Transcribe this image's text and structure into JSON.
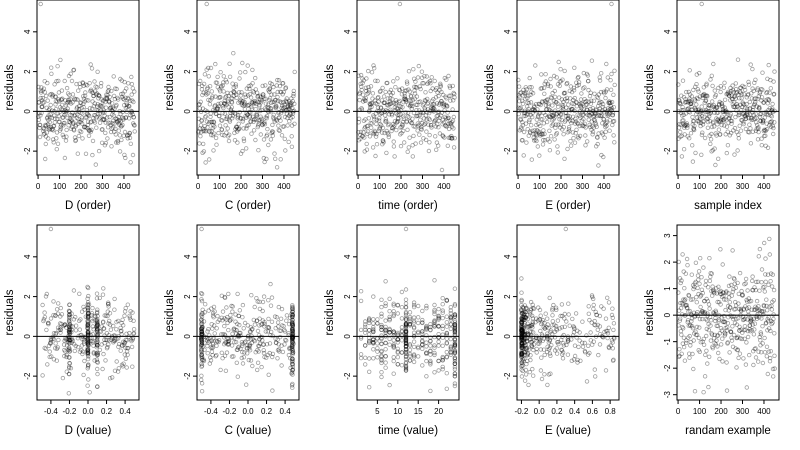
{
  "chart_data": [
    {
      "type": "scatter",
      "xlabel": "D (order)",
      "ylabel": "residuals",
      "xlim": [
        -5,
        470
      ],
      "ylim": [
        -3.2,
        5.6
      ],
      "xticks": [
        0,
        100,
        200,
        300,
        400
      ],
      "xtick_labels": [
        "0",
        "100",
        "200",
        "300",
        "400"
      ],
      "yticks": [
        -2,
        0,
        2,
        4
      ],
      "ytick_labels": [
        "-2",
        "0",
        "2",
        "4"
      ],
      "hline": 0,
      "x_spec": {
        "kind": "index",
        "n": 450
      },
      "y_spec": {
        "mu": 0,
        "sd": 0.95,
        "outliers": [
          [
            12,
            5.4
          ]
        ]
      },
      "seed": 11,
      "points": []
    },
    {
      "type": "scatter",
      "xlabel": "C (order)",
      "ylabel": "residuals",
      "xlim": [
        -5,
        470
      ],
      "ylim": [
        -3.2,
        5.6
      ],
      "xticks": [
        0,
        100,
        200,
        300,
        400
      ],
      "xtick_labels": [
        "0",
        "100",
        "200",
        "300",
        "400"
      ],
      "yticks": [
        -2,
        0,
        2,
        4
      ],
      "ytick_labels": [
        "-2",
        "0",
        "2",
        "4"
      ],
      "hline": 0,
      "x_spec": {
        "kind": "index",
        "n": 450
      },
      "y_spec": {
        "mu": 0,
        "sd": 0.95,
        "outliers": [
          [
            40,
            5.4
          ]
        ]
      },
      "seed": 23,
      "points": []
    },
    {
      "type": "scatter",
      "xlabel": "time (order)",
      "ylabel": "residuals",
      "xlim": [
        -5,
        470
      ],
      "ylim": [
        -3.2,
        5.6
      ],
      "xticks": [
        0,
        100,
        200,
        300,
        400
      ],
      "xtick_labels": [
        "0",
        "100",
        "200",
        "300",
        "400"
      ],
      "yticks": [
        -2,
        0,
        2,
        4
      ],
      "ytick_labels": [
        "-2",
        "0",
        "2",
        "4"
      ],
      "hline": 0,
      "x_spec": {
        "kind": "index",
        "n": 450
      },
      "y_spec": {
        "mu": 0,
        "sd": 0.95,
        "outliers": [
          [
            195,
            5.4
          ]
        ]
      },
      "seed": 37,
      "points": []
    },
    {
      "type": "scatter",
      "xlabel": "E (order)",
      "ylabel": "residuals",
      "xlim": [
        -5,
        470
      ],
      "ylim": [
        -3.2,
        5.6
      ],
      "xticks": [
        0,
        100,
        200,
        300,
        400
      ],
      "xtick_labels": [
        "0",
        "100",
        "200",
        "300",
        "400"
      ],
      "yticks": [
        -2,
        0,
        2,
        4
      ],
      "ytick_labels": [
        "-2",
        "0",
        "2",
        "4"
      ],
      "hline": 0,
      "x_spec": {
        "kind": "index",
        "n": 450
      },
      "y_spec": {
        "mu": 0,
        "sd": 0.95,
        "outliers": [
          [
            435,
            5.4
          ]
        ]
      },
      "seed": 41,
      "points": []
    },
    {
      "type": "scatter",
      "xlabel": "sample index",
      "ylabel": "residuals",
      "xlim": [
        -5,
        470
      ],
      "ylim": [
        -3.2,
        5.6
      ],
      "xticks": [
        0,
        100,
        200,
        300,
        400
      ],
      "xtick_labels": [
        "0",
        "100",
        "200",
        "300",
        "400"
      ],
      "yticks": [
        -2,
        0,
        2,
        4
      ],
      "ytick_labels": [
        "-2",
        "0",
        "2",
        "4"
      ],
      "hline": 0,
      "x_spec": {
        "kind": "index",
        "n": 450
      },
      "y_spec": {
        "mu": 0,
        "sd": 0.95,
        "outliers": [
          [
            110,
            5.4
          ]
        ]
      },
      "seed": 53,
      "points": []
    },
    {
      "type": "scatter",
      "xlabel": "D (value)",
      "ylabel": "residuals",
      "xlim": [
        -0.55,
        0.55
      ],
      "ylim": [
        -3.2,
        5.6
      ],
      "xticks": [
        -0.4,
        -0.2,
        0,
        0.2,
        0.4
      ],
      "xtick_labels": [
        "-0.4",
        "-0.2",
        "0.0",
        "0.2",
        "0.4"
      ],
      "yticks": [
        -2,
        0,
        2,
        4
      ],
      "ytick_labels": [
        "-2",
        "0",
        "2",
        "4"
      ],
      "hline": 0,
      "x_spec": {
        "kind": "uniform",
        "min": -0.5,
        "max": 0.5,
        "n": 450,
        "stripes": [
          -0.2,
          0.0,
          0.1
        ]
      },
      "y_spec": {
        "mu": 0,
        "sd": 0.95,
        "outliers": [
          [
            -0.4,
            5.4
          ]
        ]
      },
      "seed": 61,
      "points": []
    },
    {
      "type": "scatter",
      "xlabel": "C (value)",
      "ylabel": "residuals",
      "xlim": [
        -0.55,
        0.55
      ],
      "ylim": [
        -3.2,
        5.6
      ],
      "xticks": [
        -0.4,
        -0.2,
        0,
        0.2,
        0.4
      ],
      "xtick_labels": [
        "-0.4",
        "-0.2",
        "0.0",
        "0.2",
        "0.4"
      ],
      "yticks": [
        -2,
        0,
        2,
        4
      ],
      "ytick_labels": [
        "-2",
        "0",
        "2",
        "4"
      ],
      "hline": 0,
      "x_spec": {
        "kind": "uniform",
        "min": -0.5,
        "max": 0.5,
        "n": 450,
        "stripes": [
          -0.5,
          0.48
        ]
      },
      "y_spec": {
        "mu": 0,
        "sd": 0.95,
        "outliers": [
          [
            -0.5,
            5.4
          ]
        ]
      },
      "seed": 71,
      "points": []
    },
    {
      "type": "scatter",
      "xlabel": "time (value)",
      "ylabel": "residuals",
      "xlim": [
        0,
        25
      ],
      "ylim": [
        -3.2,
        5.6
      ],
      "xticks": [
        5,
        10,
        15,
        20
      ],
      "xtick_labels": [
        "5",
        "10",
        "15",
        "20"
      ],
      "yticks": [
        -2,
        0,
        2,
        4
      ],
      "ytick_labels": [
        "-2",
        "0",
        "2",
        "4"
      ],
      "hline": 0,
      "x_spec": {
        "kind": "int",
        "min": 1,
        "max": 24,
        "n": 450,
        "stripes": [
          12,
          24
        ]
      },
      "y_spec": {
        "mu": 0,
        "sd": 0.95,
        "outliers": [
          [
            12,
            5.4
          ]
        ]
      },
      "seed": 83,
      "points": []
    },
    {
      "type": "scatter",
      "xlabel": "E (value)",
      "ylabel": "residuals",
      "xlim": [
        -0.25,
        0.9
      ],
      "ylim": [
        -3.2,
        5.6
      ],
      "xticks": [
        -0.2,
        0,
        0.2,
        0.4,
        0.6,
        0.8
      ],
      "xtick_labels": [
        "-0.2",
        "0.0",
        "0.2",
        "0.4",
        "0.6",
        "0.8"
      ],
      "yticks": [
        -2,
        0,
        2,
        4
      ],
      "ytick_labels": [
        "-2",
        "0",
        "2",
        "4"
      ],
      "hline": 0,
      "x_spec": {
        "kind": "skew",
        "min": -0.2,
        "max": 0.85,
        "n": 450
      },
      "y_spec": {
        "mu": 0,
        "sd": 0.95,
        "outliers": [
          [
            0.3,
            5.4
          ]
        ]
      },
      "seed": 97,
      "points": []
    },
    {
      "type": "scatter",
      "xlabel": "randam example",
      "ylabel": "residuals",
      "xlim": [
        -5,
        470
      ],
      "ylim": [
        -3.2,
        3.4
      ],
      "xticks": [
        0,
        100,
        200,
        300,
        400
      ],
      "xtick_labels": [
        "0",
        "100",
        "200",
        "300",
        "400"
      ],
      "yticks": [
        -3,
        -2,
        -1,
        0,
        1,
        2,
        3
      ],
      "ytick_labels": [
        "-3",
        "-2",
        "-1",
        "0",
        "1",
        "2",
        "3"
      ],
      "hline": 0,
      "x_spec": {
        "kind": "index",
        "n": 450
      },
      "y_spec": {
        "mu": 0,
        "sd": 1.05,
        "outliers": []
      },
      "seed": 109,
      "points": []
    }
  ]
}
